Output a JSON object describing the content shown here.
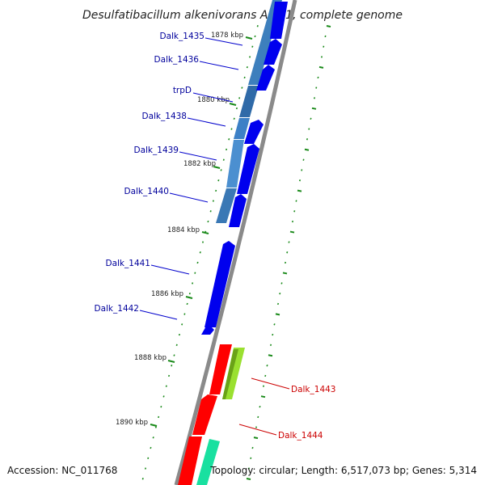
{
  "title": "Desulfatibacillum alkenivorans AK-01, complete genome",
  "footer": {
    "accession": "Accession: NC_011768",
    "topology": "Topology: circular; Length: 6,517,073 bp; Genes: 5,314"
  },
  "colors": {
    "backbone": "#8a8a8a",
    "cds_forward": "#0000ee",
    "cds_reverse": "#ff0000",
    "feature_blue": "#3a78b5",
    "feature_green": "#8fd62a",
    "feature_teal": "#19e0a0",
    "tick": "#1a8a1a",
    "label_forward": "#00009c",
    "label_reverse": "#cc0000"
  },
  "kbp_labels": [
    "1878 kbp",
    "1880 kbp",
    "1882 kbp",
    "1884 kbp",
    "1886 kbp",
    "1888 kbp",
    "1890 kbp"
  ],
  "genes_forward": [
    "Dalk_1435",
    "Dalk_1436",
    "trpD",
    "Dalk_1438",
    "Dalk_1439",
    "Dalk_1440",
    "Dalk_1441",
    "Dalk_1442"
  ],
  "genes_reverse": [
    "Dalk_1443",
    "Dalk_1444"
  ]
}
